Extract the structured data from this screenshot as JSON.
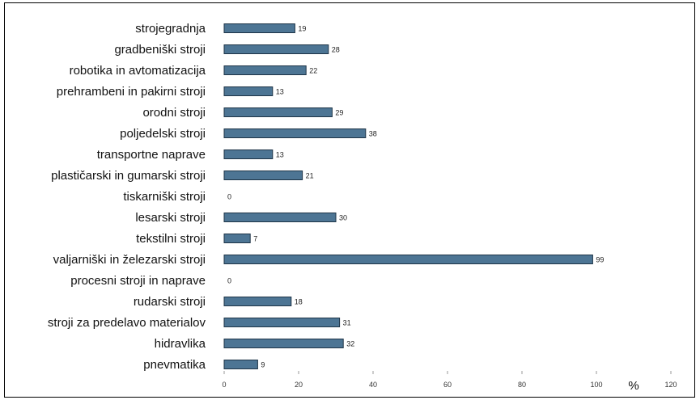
{
  "chart_data": {
    "type": "bar",
    "orientation": "horizontal",
    "categories": [
      "strojegradnja",
      "gradbeniški stroji",
      "robotika in avtomatizacija",
      "prehrambeni in pakirni stroji",
      "orodni stroji",
      "poljedelski stroji",
      "transportne naprave",
      "plastičarski in gumarski stroji",
      "tiskarniški stroji",
      "lesarski stroji",
      "tekstilni stroji",
      "valjarniški in železarski stroji",
      "procesni stroji in naprave",
      "rudarski stroji",
      "stroji za predelavo materialov",
      "hidravlika",
      "pnevmatika"
    ],
    "values": [
      19,
      28,
      22,
      13,
      29,
      38,
      13,
      21,
      0,
      30,
      7,
      99,
      0,
      18,
      31,
      32,
      9
    ],
    "value_labels": [
      "19",
      "28",
      "22",
      "13",
      "29",
      "38",
      "13",
      "21",
      "0",
      "30",
      "7",
      "99",
      "0",
      "18",
      "31",
      "32",
      "9"
    ],
    "x_ticks": [
      0,
      20,
      40,
      60,
      80,
      100,
      120
    ],
    "x_tick_labels": [
      "0",
      "20",
      "40",
      "60",
      "80",
      "100",
      "120"
    ],
    "xlim": [
      0,
      120
    ],
    "unit_label": "%",
    "grid": false,
    "legend": "none",
    "colors": {
      "bar": "#4d7594",
      "bar_edge": "#1e3447"
    }
  }
}
